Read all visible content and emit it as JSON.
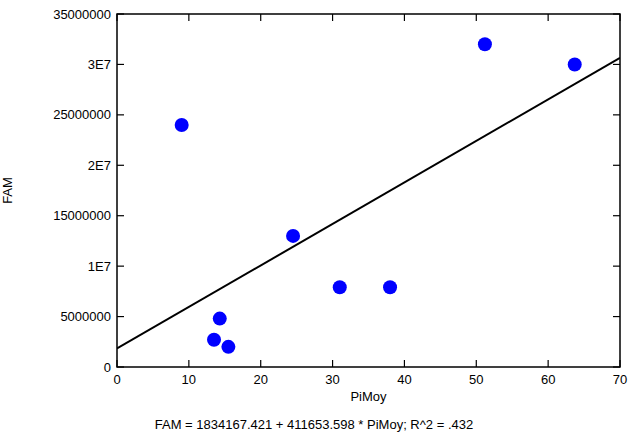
{
  "chart_data": {
    "type": "scatter",
    "caption": "FAM = 1834167.421 + 411653.598 * PiMoy; R^2 = .432",
    "x_label": "PiMoy",
    "y_label": "FAM",
    "xlim": [
      0,
      70
    ],
    "xticks": [
      0,
      10,
      20,
      30,
      40,
      50,
      60,
      70
    ],
    "ylim": [
      0,
      35000000
    ],
    "yticks": [
      0,
      5000000,
      {
        "value": 10000000,
        "label": "1E7"
      },
      15000000,
      {
        "value": 20000000,
        "label": "2E7"
      },
      25000000,
      {
        "value": 30000000,
        "label": "3E7"
      },
      35000000
    ],
    "series": [
      {
        "type": "scatter",
        "color": "#0000ff",
        "marker": "circle",
        "x": [
          9,
          14.3,
          13.5,
          15.5,
          24.5,
          31,
          38,
          51.2,
          63.7
        ],
        "values": [
          24000000,
          4800000,
          2700000,
          2000000,
          13000000,
          7900000,
          7900000,
          32000000,
          30000000
        ]
      },
      {
        "type": "line",
        "color": "#000000",
        "line_style": "solid",
        "x": [
          0,
          70
        ],
        "values": [
          1834167,
          30649919
        ]
      }
    ]
  }
}
